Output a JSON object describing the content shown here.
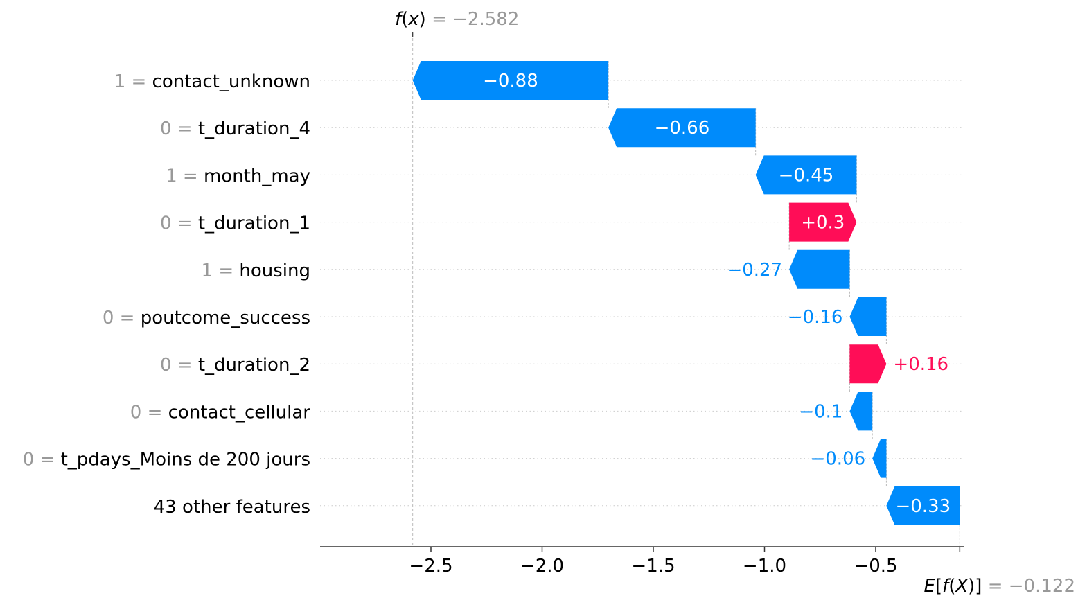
{
  "chart_data": {
    "type": "waterfall",
    "title": "",
    "xlabel": "",
    "ylabel": "",
    "xlim": [
      -2.95,
      -0.02
    ],
    "x_ticks": [
      -2.5,
      -2.0,
      -1.5,
      -1.0,
      -0.5
    ],
    "x_tick_labels": [
      "−2.5",
      "−2.0",
      "−1.5",
      "−1.0",
      "−0.5"
    ],
    "fx": {
      "label_func": "f",
      "label_arg": "x",
      "value": -2.582,
      "value_label": "= −2.582"
    },
    "efx": {
      "label_func": "E",
      "label_inner_func": "f",
      "label_arg": "X",
      "value": -0.122,
      "value_label": "= −0.122"
    },
    "colors": {
      "positive": "#ff0d57",
      "negative": "#008bfb",
      "neutral_text": "#999999"
    },
    "rows": [
      {
        "feature_value": "1",
        "feature_name": "contact_unknown",
        "shap": -0.88,
        "label": "−0.88",
        "start": -1.702,
        "end": -2.582
      },
      {
        "feature_value": "0",
        "feature_name": "t_duration_4",
        "shap": -0.66,
        "label": "−0.66",
        "start": -1.04,
        "end": -1.702
      },
      {
        "feature_value": "1",
        "feature_name": "month_may",
        "shap": -0.45,
        "label": "−0.45",
        "start": -0.586,
        "end": -1.04
      },
      {
        "feature_value": "0",
        "feature_name": "t_duration_1",
        "shap": 0.3,
        "label": "+0.3",
        "start": -0.889,
        "end": -0.586
      },
      {
        "feature_value": "1",
        "feature_name": "housing",
        "shap": -0.27,
        "label": "−0.27",
        "start": -0.617,
        "end": -0.889
      },
      {
        "feature_value": "0",
        "feature_name": "poutcome_success",
        "shap": -0.16,
        "label": "−0.16",
        "start": -0.452,
        "end": -0.617
      },
      {
        "feature_value": "0",
        "feature_name": "t_duration_2",
        "shap": 0.16,
        "label": "+0.16",
        "start": -0.617,
        "end": -0.452
      },
      {
        "feature_value": "0",
        "feature_name": "contact_cellular",
        "shap": -0.1,
        "label": "−0.1",
        "start": -0.515,
        "end": -0.617
      },
      {
        "feature_value": "0",
        "feature_name": "t_pdays_Moins de 200 jours",
        "shap": -0.06,
        "label": "−0.06",
        "start": -0.452,
        "end": -0.515
      },
      {
        "feature_value": "",
        "feature_name": "43 other features",
        "shap": -0.33,
        "label": "−0.33",
        "start": -0.122,
        "end": -0.452
      }
    ]
  }
}
